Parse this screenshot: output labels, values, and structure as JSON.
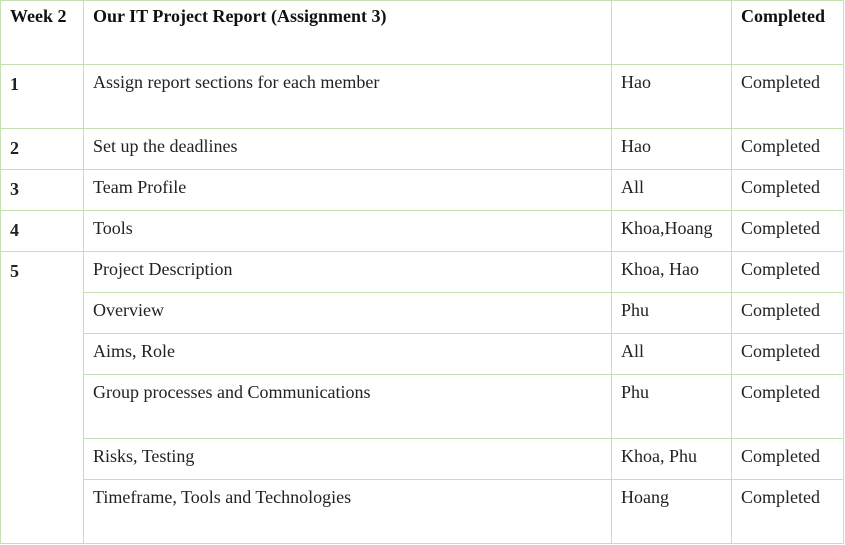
{
  "table": {
    "header": {
      "week": "Week 2",
      "title": "Our IT Project Report (Assignment 3)",
      "assignee": "",
      "status": "Completed"
    },
    "rows": [
      {
        "num": "1",
        "task": "Assign report sections for each member",
        "assignee": "Hao",
        "status": "Completed"
      },
      {
        "num": "2",
        "task": "Set up the deadlines",
        "assignee": "Hao",
        "status": "Completed"
      },
      {
        "num": "3",
        "task": "Team Profile",
        "assignee": "All",
        "status": "Completed"
      },
      {
        "num": "4",
        "task": "Tools",
        "assignee": "Khoa,Hoang",
        "status": "Completed"
      },
      {
        "num": "5",
        "task": "Project Description",
        "assignee": "Khoa, Hao",
        "status": "Completed"
      },
      {
        "num": "",
        "task": "Overview",
        "assignee": "Phu",
        "status": "Completed"
      },
      {
        "num": "",
        "task": "Aims, Role",
        "assignee": "All",
        "status": "Completed"
      },
      {
        "num": "",
        "task": "Group processes and Communications",
        "assignee": "Phu",
        "status": "Completed"
      },
      {
        "num": "",
        "task": "Risks, Testing",
        "assignee": "Khoa, Phu",
        "status": "Completed"
      },
      {
        "num": "",
        "task": "Timeframe, Tools and Technologies",
        "assignee": "Hoang",
        "status": "Completed"
      }
    ]
  },
  "colors": {
    "border": "#c5e0b3",
    "text": "#222222"
  }
}
